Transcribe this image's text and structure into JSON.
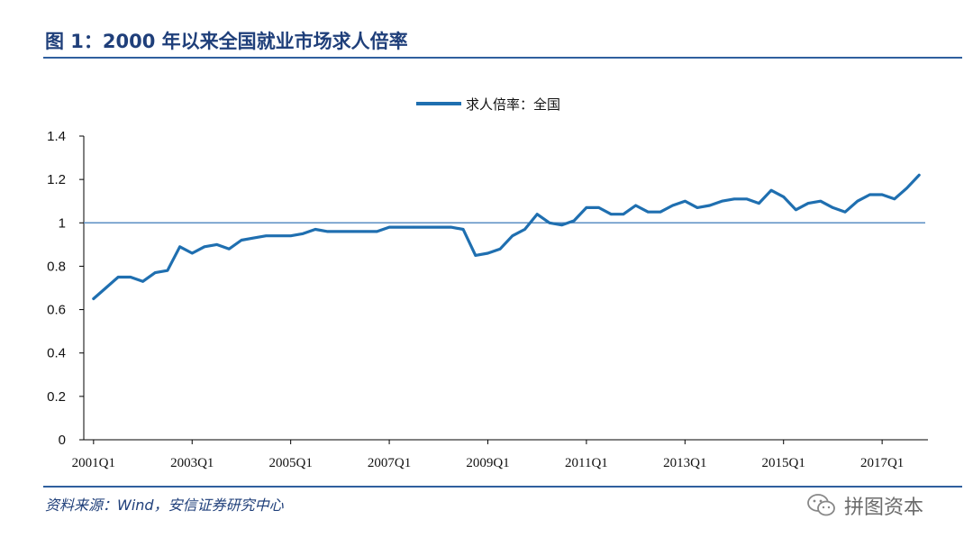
{
  "header": {
    "figure_title": "图 1：2000 年以来全国就业市场求人倍率"
  },
  "footer": {
    "source": "资料来源：Wind，安信证券研究中心"
  },
  "watermark": {
    "text": "拼图资本",
    "icon": "wechat-icon"
  },
  "colors": {
    "line": "#1f6fb0",
    "reference_line": "#5b8fc4",
    "title": "#1f3f7a"
  },
  "chart_data": {
    "type": "line",
    "title": "",
    "xlabel": "",
    "ylabel": "",
    "ylim": [
      0,
      1.4
    ],
    "yticks": [
      "0",
      "0.2",
      "0.4",
      "0.6",
      "0.8",
      "1",
      "1.2",
      "1.4"
    ],
    "xtick_labels": [
      "2001Q1",
      "2003Q1",
      "2005Q1",
      "2007Q1",
      "2009Q1",
      "2011Q1",
      "2013Q1",
      "2015Q1",
      "2017Q1"
    ],
    "reference_line": 1.0,
    "legend_position": "top-center",
    "series": [
      {
        "name": "求人倍率：全国",
        "x": [
          "2001Q1",
          "2001Q2",
          "2001Q3",
          "2001Q4",
          "2002Q1",
          "2002Q2",
          "2002Q3",
          "2002Q4",
          "2003Q1",
          "2003Q2",
          "2003Q3",
          "2003Q4",
          "2004Q1",
          "2004Q2",
          "2004Q3",
          "2004Q4",
          "2005Q1",
          "2005Q2",
          "2005Q3",
          "2005Q4",
          "2006Q1",
          "2006Q2",
          "2006Q3",
          "2006Q4",
          "2007Q1",
          "2007Q2",
          "2007Q3",
          "2007Q4",
          "2008Q1",
          "2008Q2",
          "2008Q3",
          "2008Q4",
          "2009Q1",
          "2009Q2",
          "2009Q3",
          "2009Q4",
          "2010Q1",
          "2010Q2",
          "2010Q3",
          "2010Q4",
          "2011Q1",
          "2011Q2",
          "2011Q3",
          "2011Q4",
          "2012Q1",
          "2012Q2",
          "2012Q3",
          "2012Q4",
          "2013Q1",
          "2013Q2",
          "2013Q3",
          "2013Q4",
          "2014Q1",
          "2014Q2",
          "2014Q3",
          "2014Q4",
          "2015Q1",
          "2015Q2",
          "2015Q3",
          "2015Q4",
          "2016Q1",
          "2016Q2",
          "2016Q3",
          "2016Q4",
          "2017Q1",
          "2017Q2",
          "2017Q3",
          "2017Q4"
        ],
        "values": [
          0.65,
          0.7,
          0.75,
          0.75,
          0.73,
          0.77,
          0.78,
          0.89,
          0.86,
          0.89,
          0.9,
          0.88,
          0.92,
          0.93,
          0.94,
          0.94,
          0.94,
          0.95,
          0.97,
          0.96,
          0.96,
          0.96,
          0.96,
          0.96,
          0.98,
          0.98,
          0.98,
          0.98,
          0.98,
          0.98,
          0.97,
          0.85,
          0.86,
          0.88,
          0.94,
          0.97,
          1.04,
          1.0,
          0.99,
          1.01,
          1.07,
          1.07,
          1.04,
          1.04,
          1.08,
          1.05,
          1.05,
          1.08,
          1.1,
          1.07,
          1.08,
          1.1,
          1.11,
          1.11,
          1.09,
          1.15,
          1.12,
          1.06,
          1.09,
          1.1,
          1.07,
          1.05,
          1.1,
          1.13,
          1.13,
          1.11,
          1.16,
          1.22
        ]
      }
    ]
  }
}
